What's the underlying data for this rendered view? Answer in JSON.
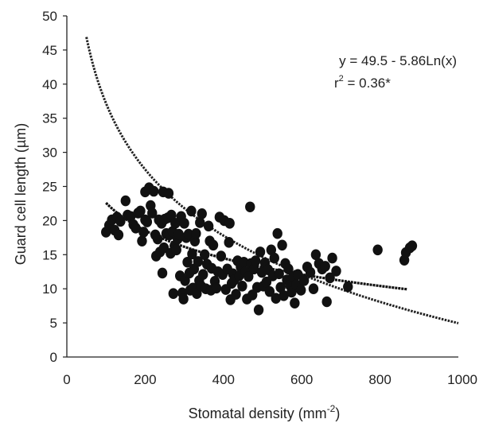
{
  "chart_data": {
    "type": "scatter",
    "xlabel": "Stomatal density (mm",
    "xlabel_sup": "-2",
    "xlabel_close": ")",
    "ylabel": "Guard cell length (µm)",
    "xlim": [
      0,
      1000
    ],
    "ylim": [
      0,
      50
    ],
    "xticks": [
      "0",
      "200",
      "400",
      "600",
      "800",
      "1000"
    ],
    "yticks": [
      "0",
      "5",
      "10",
      "15",
      "20",
      "25",
      "30",
      "35",
      "40",
      "45",
      "50"
    ],
    "grid": false,
    "annotation": {
      "equation": "y = 49.5 - 5.86Ln(x)",
      "r_base": "r",
      "r_sup": "2",
      "r_rest": " = 0.36*"
    },
    "points": [
      {
        "x": 100,
        "y": 18.3
      },
      {
        "x": 108,
        "y": 19.3
      },
      {
        "x": 115,
        "y": 20.1
      },
      {
        "x": 122,
        "y": 18.6
      },
      {
        "x": 128,
        "y": 20.5
      },
      {
        "x": 132,
        "y": 17.9
      },
      {
        "x": 137,
        "y": 19.9
      },
      {
        "x": 150,
        "y": 22.9
      },
      {
        "x": 155,
        "y": 20.8
      },
      {
        "x": 163,
        "y": 20.6
      },
      {
        "x": 170,
        "y": 19.4
      },
      {
        "x": 176,
        "y": 18.9
      },
      {
        "x": 182,
        "y": 21.1
      },
      {
        "x": 188,
        "y": 21.4
      },
      {
        "x": 192,
        "y": 17.0
      },
      {
        "x": 196,
        "y": 18.3
      },
      {
        "x": 200,
        "y": 20.1
      },
      {
        "x": 200,
        "y": 24.2
      },
      {
        "x": 205,
        "y": 19.8
      },
      {
        "x": 210,
        "y": 24.8
      },
      {
        "x": 214,
        "y": 22.2
      },
      {
        "x": 218,
        "y": 21.1
      },
      {
        "x": 222,
        "y": 24.3
      },
      {
        "x": 226,
        "y": 17.9
      },
      {
        "x": 228,
        "y": 14.8
      },
      {
        "x": 232,
        "y": 17.3
      },
      {
        "x": 235,
        "y": 20.1
      },
      {
        "x": 238,
        "y": 15.4
      },
      {
        "x": 242,
        "y": 19.6
      },
      {
        "x": 244,
        "y": 12.3
      },
      {
        "x": 246,
        "y": 24.2
      },
      {
        "x": 248,
        "y": 16.0
      },
      {
        "x": 250,
        "y": 20.2
      },
      {
        "x": 254,
        "y": 18.1
      },
      {
        "x": 258,
        "y": 20.4
      },
      {
        "x": 260,
        "y": 24.0
      },
      {
        "x": 262,
        "y": 17.9
      },
      {
        "x": 265,
        "y": 15.2
      },
      {
        "x": 267,
        "y": 20.8
      },
      {
        "x": 270,
        "y": 18.4
      },
      {
        "x": 272,
        "y": 9.3
      },
      {
        "x": 275,
        "y": 16.3
      },
      {
        "x": 277,
        "y": 19.6
      },
      {
        "x": 280,
        "y": 15.7
      },
      {
        "x": 283,
        "y": 17.3
      },
      {
        "x": 286,
        "y": 18.0
      },
      {
        "x": 289,
        "y": 11.9
      },
      {
        "x": 292,
        "y": 20.6
      },
      {
        "x": 295,
        "y": 9.4
      },
      {
        "x": 298,
        "y": 8.5
      },
      {
        "x": 300,
        "y": 19.6
      },
      {
        "x": 302,
        "y": 11.2
      },
      {
        "x": 305,
        "y": 17.5
      },
      {
        "x": 308,
        "y": 13.9
      },
      {
        "x": 311,
        "y": 18.0
      },
      {
        "x": 313,
        "y": 12.3
      },
      {
        "x": 315,
        "y": 9.8
      },
      {
        "x": 318,
        "y": 21.4
      },
      {
        "x": 320,
        "y": 15.1
      },
      {
        "x": 322,
        "y": 10.1
      },
      {
        "x": 325,
        "y": 12.9
      },
      {
        "x": 327,
        "y": 17.0
      },
      {
        "x": 330,
        "y": 18.1
      },
      {
        "x": 332,
        "y": 9.3
      },
      {
        "x": 335,
        "y": 14.0
      },
      {
        "x": 338,
        "y": 11.2
      },
      {
        "x": 340,
        "y": 19.7
      },
      {
        "x": 343,
        "y": 10.4
      },
      {
        "x": 345,
        "y": 21.0
      },
      {
        "x": 348,
        "y": 12.1
      },
      {
        "x": 352,
        "y": 15.0
      },
      {
        "x": 355,
        "y": 10.0
      },
      {
        "x": 358,
        "y": 13.6
      },
      {
        "x": 362,
        "y": 19.2
      },
      {
        "x": 365,
        "y": 17.0
      },
      {
        "x": 368,
        "y": 9.8
      },
      {
        "x": 370,
        "y": 13.0
      },
      {
        "x": 374,
        "y": 16.4
      },
      {
        "x": 378,
        "y": 11.1
      },
      {
        "x": 382,
        "y": 10.1
      },
      {
        "x": 386,
        "y": 12.5
      },
      {
        "x": 390,
        "y": 20.5
      },
      {
        "x": 394,
        "y": 14.8
      },
      {
        "x": 398,
        "y": 12.1
      },
      {
        "x": 402,
        "y": 20.0
      },
      {
        "x": 406,
        "y": 9.9
      },
      {
        "x": 410,
        "y": 12.9
      },
      {
        "x": 414,
        "y": 16.8
      },
      {
        "x": 416,
        "y": 19.6
      },
      {
        "x": 418,
        "y": 8.4
      },
      {
        "x": 421,
        "y": 10.8
      },
      {
        "x": 424,
        "y": 12.2
      },
      {
        "x": 428,
        "y": 11.3
      },
      {
        "x": 432,
        "y": 9.2
      },
      {
        "x": 436,
        "y": 14.1
      },
      {
        "x": 440,
        "y": 11.9
      },
      {
        "x": 444,
        "y": 13.2
      },
      {
        "x": 448,
        "y": 10.4
      },
      {
        "x": 452,
        "y": 13.9
      },
      {
        "x": 456,
        "y": 12.5
      },
      {
        "x": 460,
        "y": 8.5
      },
      {
        "x": 464,
        "y": 11.8
      },
      {
        "x": 468,
        "y": 22.0
      },
      {
        "x": 470,
        "y": 13.7
      },
      {
        "x": 474,
        "y": 9.1
      },
      {
        "x": 478,
        "y": 12.9
      },
      {
        "x": 482,
        "y": 14.1
      },
      {
        "x": 486,
        "y": 10.2
      },
      {
        "x": 490,
        "y": 6.9
      },
      {
        "x": 494,
        "y": 15.4
      },
      {
        "x": 498,
        "y": 12.4
      },
      {
        "x": 502,
        "y": 10.4
      },
      {
        "x": 506,
        "y": 13.8
      },
      {
        "x": 510,
        "y": 11.0
      },
      {
        "x": 514,
        "y": 12.8
      },
      {
        "x": 518,
        "y": 9.6
      },
      {
        "x": 522,
        "y": 15.7
      },
      {
        "x": 526,
        "y": 11.9
      },
      {
        "x": 530,
        "y": 14.5
      },
      {
        "x": 534,
        "y": 8.6
      },
      {
        "x": 538,
        "y": 18.1
      },
      {
        "x": 542,
        "y": 12.2
      },
      {
        "x": 546,
        "y": 10.2
      },
      {
        "x": 550,
        "y": 16.4
      },
      {
        "x": 554,
        "y": 9.0
      },
      {
        "x": 558,
        "y": 13.7
      },
      {
        "x": 562,
        "y": 11.3
      },
      {
        "x": 566,
        "y": 12.9
      },
      {
        "x": 570,
        "y": 10.5
      },
      {
        "x": 574,
        "y": 9.5
      },
      {
        "x": 578,
        "y": 11.8
      },
      {
        "x": 582,
        "y": 7.9
      },
      {
        "x": 586,
        "y": 10.6
      },
      {
        "x": 590,
        "y": 12.1
      },
      {
        "x": 598,
        "y": 9.8
      },
      {
        "x": 606,
        "y": 11.2
      },
      {
        "x": 614,
        "y": 13.2
      },
      {
        "x": 622,
        "y": 12.4
      },
      {
        "x": 630,
        "y": 10.0
      },
      {
        "x": 636,
        "y": 15.0
      },
      {
        "x": 644,
        "y": 13.7
      },
      {
        "x": 652,
        "y": 12.9
      },
      {
        "x": 660,
        "y": 13.3
      },
      {
        "x": 664,
        "y": 8.1
      },
      {
        "x": 672,
        "y": 11.6
      },
      {
        "x": 678,
        "y": 14.5
      },
      {
        "x": 688,
        "y": 12.6
      },
      {
        "x": 718,
        "y": 10.3
      },
      {
        "x": 794,
        "y": 15.7
      },
      {
        "x": 862,
        "y": 14.2
      },
      {
        "x": 866,
        "y": 15.3
      },
      {
        "x": 876,
        "y": 16.0
      },
      {
        "x": 882,
        "y": 16.3
      }
    ],
    "trendline": {
      "solid": {
        "from": 100,
        "to": 870
      },
      "dashed": {
        "from": 50,
        "to": 1000
      }
    }
  }
}
